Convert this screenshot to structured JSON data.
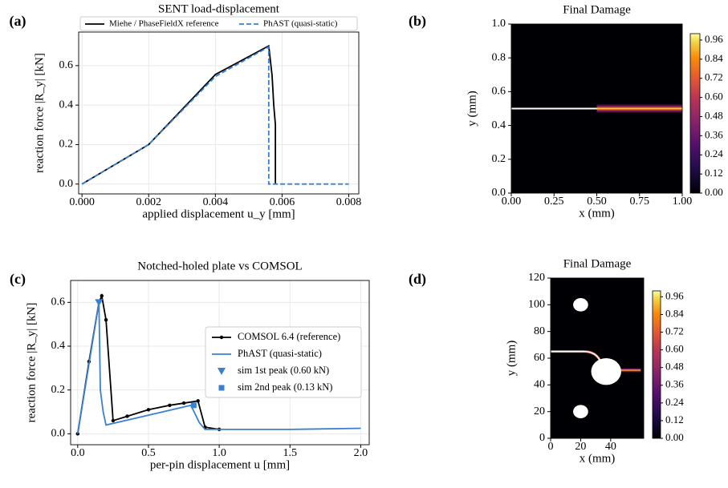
{
  "chart_data": [
    {
      "type": "line",
      "panel_label": "(a)",
      "title": "SENT load-displacement",
      "x_label": "applied displacement u_y [mm]",
      "y_label": "reaction force |R_y| [kN]",
      "xlim": [
        -0.0001,
        0.0083
      ],
      "ylim": [
        -0.05,
        0.77
      ],
      "xticks": [
        {
          "value": 0,
          "label": "0.000"
        },
        {
          "value": 0.002,
          "label": "0.002"
        },
        {
          "value": 0.004,
          "label": "0.004"
        },
        {
          "value": 0.006,
          "label": "0.006"
        },
        {
          "value": 0.008,
          "label": "0.008"
        }
      ],
      "yticks": [
        {
          "value": 0,
          "label": "0.0"
        },
        {
          "value": 0.2,
          "label": "0.2"
        },
        {
          "value": 0.4,
          "label": "0.4"
        },
        {
          "value": 0.6,
          "label": "0.6"
        }
      ],
      "grid": true,
      "legend": "top",
      "series": [
        {
          "name": "Miehe / PhaseFieldX reference",
          "color": "#000000",
          "linestyle": "solid",
          "x": [
            0,
            0.002,
            0.004,
            0.0056,
            0.0057,
            0.00575,
            0.0058,
            0.0058
          ],
          "values": [
            0,
            0.2,
            0.555,
            0.7,
            0.55,
            0.4,
            0.3,
            0
          ]
        },
        {
          "name": "PhAST (quasi-static)",
          "color": "#3a7fd0",
          "linestyle": "dashed",
          "x": [
            0,
            0.002,
            0.004,
            0.0056,
            0.0056,
            0.008
          ],
          "values": [
            0,
            0.2,
            0.545,
            0.695,
            0,
            0
          ]
        }
      ]
    },
    {
      "type": "heatmap",
      "panel_label": "(b)",
      "title": "Final Damage",
      "x_label": "x (mm)",
      "y_label": "y (mm)",
      "xlim": [
        0,
        1
      ],
      "ylim": [
        0,
        1
      ],
      "clim": [
        0,
        1
      ],
      "xticks": [
        {
          "value": 0,
          "label": "0.00"
        },
        {
          "value": 0.25,
          "label": "0.25"
        },
        {
          "value": 0.5,
          "label": "0.50"
        },
        {
          "value": 0.75,
          "label": "0.75"
        },
        {
          "value": 1,
          "label": "1.00"
        }
      ],
      "yticks": [
        {
          "value": 0,
          "label": "0.0"
        },
        {
          "value": 0.2,
          "label": "0.2"
        },
        {
          "value": 0.4,
          "label": "0.4"
        },
        {
          "value": 0.6,
          "label": "0.6"
        },
        {
          "value": 0.8,
          "label": "0.8"
        },
        {
          "value": 1,
          "label": "1.0"
        }
      ],
      "cticks": [
        {
          "value": 0,
          "label": "0.00"
        },
        {
          "value": 0.12,
          "label": "0.12"
        },
        {
          "value": 0.24,
          "label": "0.24"
        },
        {
          "value": 0.36,
          "label": "0.36"
        },
        {
          "value": 0.48,
          "label": "0.48"
        },
        {
          "value": 0.6,
          "label": "0.60"
        },
        {
          "value": 0.72,
          "label": "0.72"
        },
        {
          "value": 0.84,
          "label": "0.84"
        },
        {
          "value": 0.96,
          "label": "0.96"
        }
      ]
    },
    {
      "type": "line",
      "panel_label": "(c)",
      "title": "Notched-holed plate vs COMSOL",
      "x_label": "per-pin displacement u [mm]",
      "y_label": "reaction force |R_y| [kN]",
      "xlim": [
        -0.05,
        2.06
      ],
      "ylim": [
        -0.05,
        0.7
      ],
      "xticks": [
        {
          "value": 0,
          "label": "0.0"
        },
        {
          "value": 0.5,
          "label": "0.5"
        },
        {
          "value": 1,
          "label": "1.0"
        },
        {
          "value": 1.5,
          "label": "1.5"
        },
        {
          "value": 2,
          "label": "2.0"
        }
      ],
      "yticks": [
        {
          "value": 0,
          "label": "0.0"
        },
        {
          "value": 0.2,
          "label": "0.2"
        },
        {
          "value": 0.4,
          "label": "0.4"
        },
        {
          "value": 0.6,
          "label": "0.6"
        }
      ],
      "grid": true,
      "legend": "right",
      "series": [
        {
          "name": "COMSOL 6.4 (reference)",
          "color": "#000000",
          "linestyle": "solid",
          "marker": "o",
          "x": [
            0,
            0.08,
            0.15,
            0.17,
            0.2,
            0.25,
            0.35,
            0.5,
            0.65,
            0.75,
            0.85,
            0.9,
            1.0
          ],
          "values": [
            0,
            0.33,
            0.6,
            0.63,
            0.52,
            0.06,
            0.08,
            0.11,
            0.13,
            0.14,
            0.15,
            0.03,
            0.02
          ]
        },
        {
          "name": "PhAST (quasi-static)",
          "color": "#3a7fd0",
          "linestyle": "solid",
          "x": [
            0,
            0.15,
            0.16,
            0.18,
            0.2,
            0.4,
            0.8,
            0.86,
            0.9,
            1.5,
            2.0
          ],
          "values": [
            0,
            0.6,
            0.2,
            0.1,
            0.04,
            0.07,
            0.13,
            0.05,
            0.02,
            0.02,
            0.025
          ]
        },
        {
          "name": "sim 1st peak (0.60 kN)",
          "color": "#3a7fd0",
          "linestyle": "none",
          "marker": "v",
          "x": [
            0.15
          ],
          "values": [
            0.6
          ]
        },
        {
          "name": "sim 2nd peak (0.13 kN)",
          "color": "#3a7fd0",
          "linestyle": "none",
          "marker": "s",
          "x": [
            0.82
          ],
          "values": [
            0.13
          ]
        }
      ]
    },
    {
      "type": "heatmap",
      "panel_label": "(d)",
      "title": "Final Damage",
      "x_label": "x (mm)",
      "y_label": "y (mm)",
      "xlim": [
        0,
        62
      ],
      "ylim": [
        0,
        120
      ],
      "clim": [
        0,
        1
      ],
      "xticks": [
        0,
        20,
        40
      ],
      "yticks": [
        0,
        20,
        40,
        60,
        80,
        100,
        120
      ],
      "cticks": [
        {
          "value": 0,
          "label": "0.00"
        },
        {
          "value": 0.12,
          "label": "0.12"
        },
        {
          "value": 0.24,
          "label": "0.24"
        },
        {
          "value": 0.36,
          "label": "0.36"
        },
        {
          "value": 0.48,
          "label": "0.48"
        },
        {
          "value": 0.6,
          "label": "0.60"
        },
        {
          "value": 0.72,
          "label": "0.72"
        },
        {
          "value": 0.84,
          "label": "0.84"
        },
        {
          "value": 0.96,
          "label": "0.96"
        }
      ]
    }
  ]
}
